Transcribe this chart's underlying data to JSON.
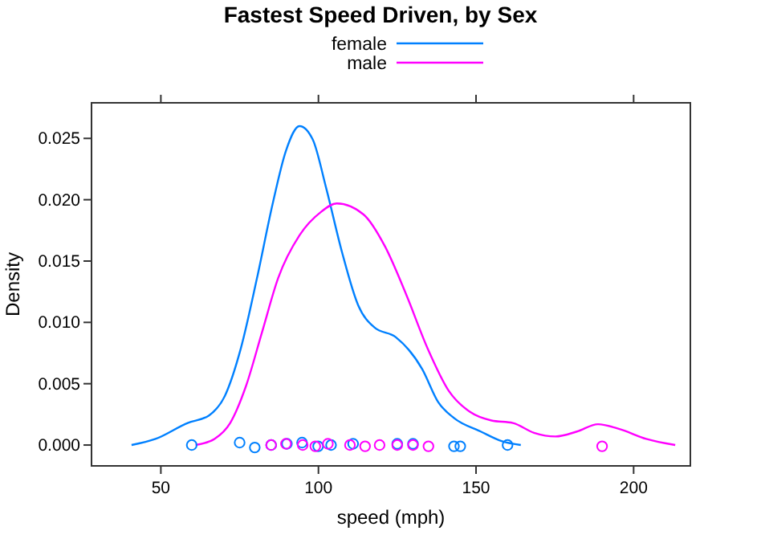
{
  "chart_data": {
    "type": "line",
    "title": "Fastest Speed Driven, by Sex",
    "xlabel": "speed (mph)",
    "ylabel": "Density",
    "xlim": [
      28,
      218
    ],
    "ylim": [
      -0.0017,
      0.0279
    ],
    "xticks": [
      50,
      100,
      150,
      200
    ],
    "yticks": [
      {
        "value": 0,
        "label": "0.000"
      },
      0.005,
      {
        "value": 0.01,
        "label": "0.010"
      },
      0.015,
      {
        "value": 0.02,
        "label": "0.020"
      },
      0.025
    ],
    "grid": false,
    "legend": "top",
    "marker": "none",
    "line_style": "solid",
    "series": [
      {
        "name": "female",
        "color": "#0080ff",
        "x": [
          40.7,
          48.3,
          58.5,
          65.2,
          70.3,
          75.4,
          80.5,
          85.5,
          89.7,
          94,
          98.2,
          102.4,
          107.5,
          112.6,
          117.7,
          124.5,
          132.9,
          138,
          143,
          151.5,
          158.3,
          164.2
        ],
        "values": [
          0,
          0.0005,
          0.0018,
          0.0024,
          0.004,
          0.0079,
          0.0136,
          0.0197,
          0.024,
          0.026,
          0.0249,
          0.021,
          0.0157,
          0.0114,
          0.0096,
          0.0088,
          0.0062,
          0.0035,
          0.0022,
          0.0011,
          0.0003,
          0
        ]
      },
      {
        "name": "male",
        "color": "#ff00ff",
        "x": [
          61,
          67,
          72,
          77,
          82.1,
          87.2,
          94,
          100.8,
          105.8,
          114.3,
          121.1,
          127.8,
          134.6,
          141.4,
          148.1,
          154.9,
          161.7,
          168.4,
          175.2,
          182,
          188.7,
          195.5,
          204,
          213.2
        ],
        "values": [
          0,
          0.0005,
          0.0018,
          0.0048,
          0.0092,
          0.0136,
          0.0171,
          0.019,
          0.0197,
          0.0188,
          0.0162,
          0.0123,
          0.0079,
          0.0044,
          0.0027,
          0.002,
          0.0018,
          0.001,
          0.0007,
          0.0011,
          0.0017,
          0.0013,
          0.0005,
          0
        ]
      },
      {
        "type": "scatter",
        "marker": "circle",
        "color": "#0080ff",
        "x": [
          59.8,
          75,
          79.8,
          85,
          90,
          94.8,
          99.9,
          104,
          111,
          125,
          130,
          143,
          145,
          160
        ],
        "values": [
          0,
          0.0002,
          -0.0002,
          0,
          0.0001,
          0.0002,
          -0.0001,
          0,
          0.0001,
          0.0001,
          0.0001,
          -0.0001,
          -0.0001,
          0
        ]
      },
      {
        "type": "scatter",
        "marker": "circle",
        "color": "#ff00ff",
        "x": [
          85,
          89.7,
          95,
          99,
          103,
          110,
          114.8,
          119.4,
          125,
          130,
          134.9,
          190
        ],
        "values": [
          0,
          0.0001,
          0,
          -0.0001,
          0.0001,
          0,
          -0.0001,
          0,
          0,
          0,
          -0.0001,
          -0.0001
        ]
      }
    ]
  }
}
